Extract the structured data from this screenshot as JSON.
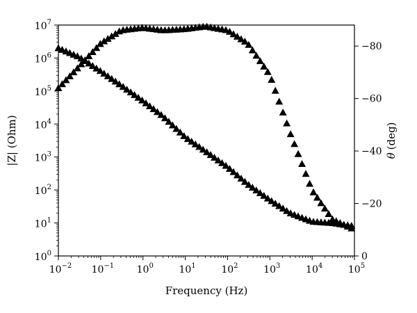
{
  "chart_data": {
    "type": "scatter",
    "title": "",
    "xlabel": "Frequency (Hz)",
    "ylabel_left": "|Z| (Ohm)",
    "ylabel_right_symbol": "θ",
    "ylabel_right_unit": "(deg)",
    "x_scale": "log",
    "xlim": [
      0.01,
      100000
    ],
    "x_ticks": [
      {
        "value": 0.01,
        "base": "10",
        "exp": "−2"
      },
      {
        "value": 0.1,
        "base": "10",
        "exp": "−1"
      },
      {
        "value": 1,
        "base": "10",
        "exp": "0"
      },
      {
        "value": 10,
        "base": "10",
        "exp": "1"
      },
      {
        "value": 100,
        "base": "10",
        "exp": "2"
      },
      {
        "value": 1000,
        "base": "10",
        "exp": "3"
      },
      {
        "value": 10000,
        "base": "10",
        "exp": "4"
      },
      {
        "value": 100000,
        "base": "10",
        "exp": "5"
      }
    ],
    "y_left_scale": "log",
    "y_left_lim": [
      1,
      10000000
    ],
    "y_left_ticks": [
      {
        "value": 1,
        "base": "10",
        "exp": "0"
      },
      {
        "value": 10,
        "base": "10",
        "exp": "1"
      },
      {
        "value": 100,
        "base": "10",
        "exp": "2"
      },
      {
        "value": 1000,
        "base": "10",
        "exp": "3"
      },
      {
        "value": 10000,
        "base": "10",
        "exp": "4"
      },
      {
        "value": 100000,
        "base": "10",
        "exp": "5"
      },
      {
        "value": 1000000,
        "base": "10",
        "exp": "6"
      },
      {
        "value": 10000000,
        "base": "10",
        "exp": "7"
      }
    ],
    "y_right_lim": [
      0,
      -88
    ],
    "y_right_ticks": [
      {
        "value": 0,
        "label": "0"
      },
      {
        "value": -20,
        "label": "−20"
      },
      {
        "value": -40,
        "label": "−40"
      },
      {
        "value": -60,
        "label": "−60"
      },
      {
        "value": -80,
        "label": "−80"
      }
    ],
    "grid": false,
    "marker": "filled-triangle",
    "marker_color": "#000000",
    "series": [
      {
        "axis": "left",
        "points": [
          [
            0.01,
            2000000
          ],
          [
            0.03,
            1100000
          ],
          [
            0.1,
            400000
          ],
          [
            0.3,
            150000
          ],
          [
            1,
            50000
          ],
          [
            3,
            17000
          ],
          [
            10,
            4000
          ],
          [
            30,
            1500
          ],
          [
            100,
            500
          ],
          [
            300,
            150
          ],
          [
            1000,
            50
          ],
          [
            3000,
            20
          ],
          [
            10000,
            11
          ],
          [
            30000,
            10
          ],
          [
            100000,
            8
          ]
        ]
      },
      {
        "axis": "right",
        "points": [
          [
            0.01,
            -64
          ],
          [
            0.03,
            -72
          ],
          [
            0.1,
            -81
          ],
          [
            0.3,
            -86
          ],
          [
            1,
            -87
          ],
          [
            3,
            -86
          ],
          [
            10,
            -86.5
          ],
          [
            30,
            -87.5
          ],
          [
            100,
            -86
          ],
          [
            300,
            -81
          ],
          [
            1000,
            -69
          ],
          [
            3000,
            -47
          ],
          [
            10000,
            -25
          ],
          [
            30000,
            -14
          ],
          [
            100000,
            -10
          ]
        ]
      }
    ]
  }
}
